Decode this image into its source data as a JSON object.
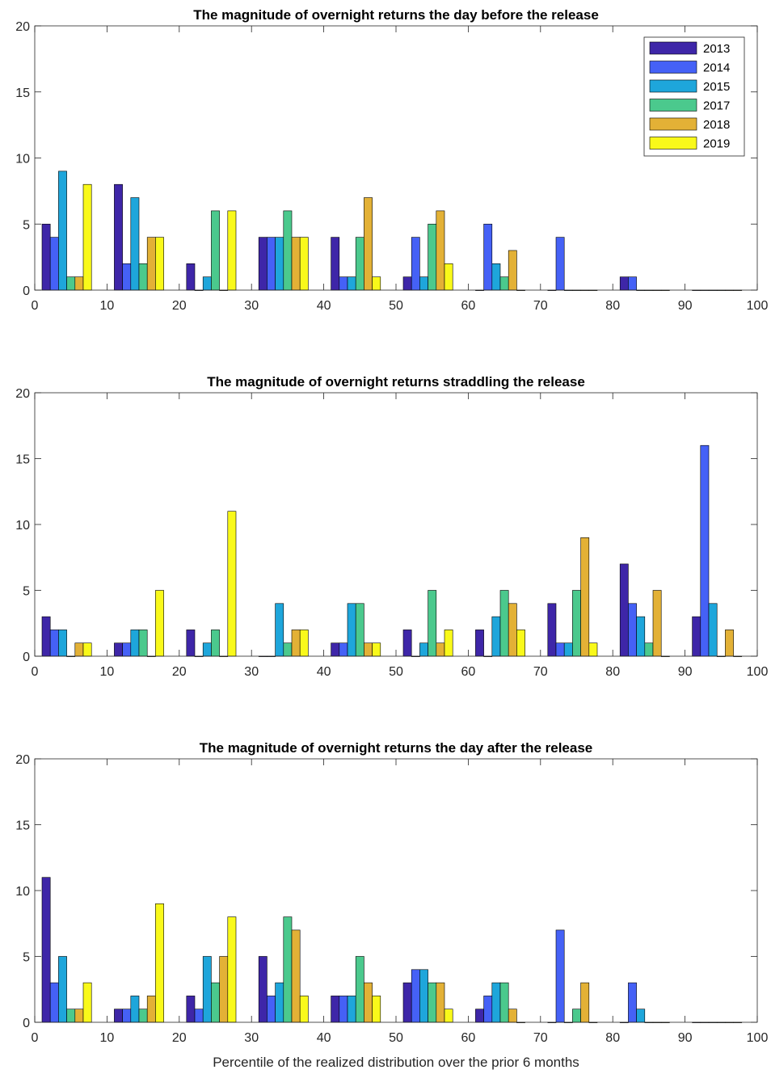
{
  "chart_data": [
    {
      "type": "bar",
      "title": "The magnitude of overnight returns the day before the release",
      "xlabel": "",
      "ylabel": "",
      "xlim": [
        0,
        100
      ],
      "ylim": [
        0,
        20
      ],
      "xticks": [
        "0",
        "10",
        "20",
        "30",
        "40",
        "50",
        "60",
        "70",
        "80",
        "90",
        "100"
      ],
      "yticks": [
        "0",
        "5",
        "10",
        "15",
        "20"
      ],
      "categories": [
        "5",
        "15",
        "25",
        "35",
        "45",
        "55",
        "65",
        "75",
        "85",
        "95"
      ],
      "legend": {
        "placement": "top-right"
      },
      "grid": false,
      "series": [
        {
          "name": "2013",
          "color": "#3e26a8",
          "values": [
            5,
            8,
            2,
            4,
            4,
            1,
            0,
            0,
            1,
            0
          ]
        },
        {
          "name": "2014",
          "color": "#4561f6",
          "values": [
            4,
            2,
            0,
            4,
            1,
            4,
            5,
            4,
            1,
            0
          ]
        },
        {
          "name": "2015",
          "color": "#1ea6db",
          "values": [
            9,
            7,
            1,
            4,
            1,
            1,
            2,
            0,
            0,
            0
          ]
        },
        {
          "name": "2017",
          "color": "#4bc98d",
          "values": [
            1,
            2,
            6,
            6,
            4,
            5,
            1,
            0,
            0,
            0
          ]
        },
        {
          "name": "2018",
          "color": "#e3b136",
          "values": [
            1,
            4,
            0,
            4,
            7,
            6,
            3,
            0,
            0,
            0
          ]
        },
        {
          "name": "2019",
          "color": "#f9f91a",
          "values": [
            8,
            4,
            6,
            4,
            1,
            2,
            0,
            0,
            0,
            0
          ]
        }
      ]
    },
    {
      "type": "bar",
      "title": "The magnitude of overnight returns straddling the release",
      "xlabel": "",
      "ylabel": "",
      "xlim": [
        0,
        100
      ],
      "ylim": [
        0,
        20
      ],
      "xticks": [
        "0",
        "10",
        "20",
        "30",
        "40",
        "50",
        "60",
        "70",
        "80",
        "90",
        "100"
      ],
      "yticks": [
        "0",
        "5",
        "10",
        "15",
        "20"
      ],
      "categories": [
        "5",
        "15",
        "25",
        "35",
        "45",
        "55",
        "65",
        "75",
        "85",
        "95"
      ],
      "grid": false,
      "series": [
        {
          "color": "#3e26a8",
          "values": [
            3,
            1,
            2,
            0,
            1,
            2,
            2,
            4,
            7,
            3
          ]
        },
        {
          "color": "#4561f6",
          "values": [
            2,
            1,
            0,
            0,
            1,
            0,
            0,
            1,
            4,
            16
          ]
        },
        {
          "color": "#1ea6db",
          "values": [
            2,
            2,
            1,
            4,
            4,
            1,
            3,
            1,
            3,
            4
          ]
        },
        {
          "color": "#4bc98d",
          "values": [
            0,
            2,
            2,
            1,
            4,
            5,
            5,
            5,
            1,
            0
          ]
        },
        {
          "color": "#e3b136",
          "values": [
            1,
            0,
            0,
            2,
            1,
            1,
            4,
            9,
            5,
            2
          ]
        },
        {
          "color": "#f9f91a",
          "values": [
            1,
            5,
            11,
            2,
            1,
            2,
            2,
            1,
            0,
            0
          ]
        }
      ]
    },
    {
      "type": "bar",
      "title": "The magnitude of overnight returns the day after the release",
      "xlabel": "Percentile of the realized distribution over the prior 6 months",
      "ylabel": "",
      "xlim": [
        0,
        100
      ],
      "ylim": [
        0,
        20
      ],
      "xticks": [
        "0",
        "10",
        "20",
        "30",
        "40",
        "50",
        "60",
        "70",
        "80",
        "90",
        "100"
      ],
      "yticks": [
        "0",
        "5",
        "10",
        "15",
        "20"
      ],
      "categories": [
        "5",
        "15",
        "25",
        "35",
        "45",
        "55",
        "65",
        "75",
        "85",
        "95"
      ],
      "grid": false,
      "series": [
        {
          "color": "#3e26a8",
          "values": [
            11,
            1,
            2,
            5,
            2,
            3,
            1,
            0,
            0,
            0
          ]
        },
        {
          "color": "#4561f6",
          "values": [
            3,
            1,
            1,
            2,
            2,
            4,
            2,
            7,
            3,
            0
          ]
        },
        {
          "color": "#1ea6db",
          "values": [
            5,
            2,
            5,
            3,
            2,
            4,
            3,
            0,
            1,
            0
          ]
        },
        {
          "color": "#4bc98d",
          "values": [
            1,
            1,
            3,
            8,
            5,
            3,
            3,
            1,
            0,
            0
          ]
        },
        {
          "color": "#e3b136",
          "values": [
            1,
            2,
            5,
            7,
            3,
            3,
            1,
            3,
            0,
            0
          ]
        },
        {
          "color": "#f9f91a",
          "values": [
            3,
            9,
            8,
            2,
            2,
            1,
            0,
            0,
            0,
            0
          ]
        }
      ]
    }
  ]
}
